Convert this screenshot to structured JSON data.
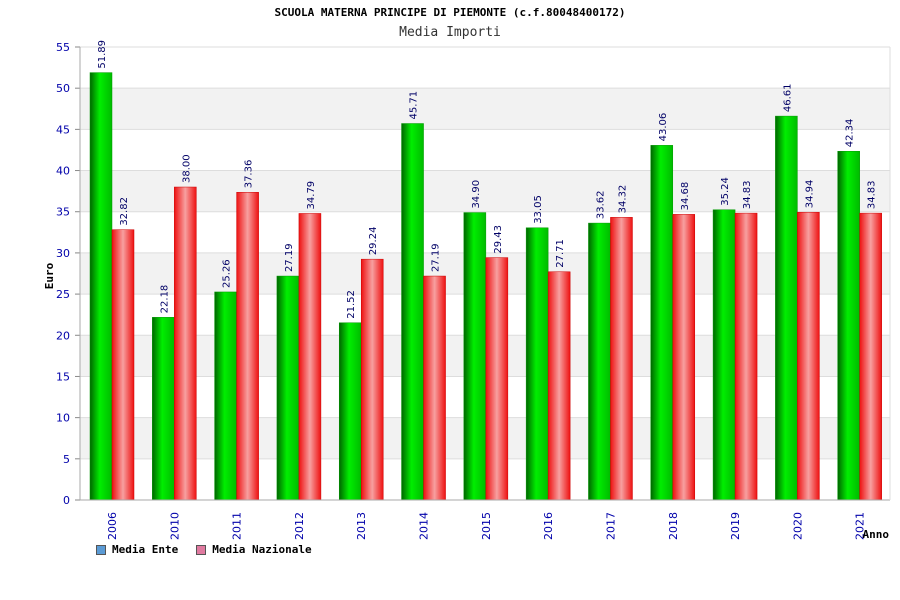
{
  "chart_data": {
    "type": "bar",
    "title": "SCUOLA MATERNA PRINCIPE DI PIEMONTE (c.f.80048400172)",
    "subtitle": "Media Importi",
    "xlabel": "Anno",
    "ylabel": "Euro",
    "ylim": [
      0,
      55
    ],
    "yticks": [
      0,
      5,
      10,
      15,
      20,
      25,
      30,
      35,
      40,
      45,
      50,
      55
    ],
    "categories": [
      "2006",
      "2010",
      "2011",
      "2012",
      "2013",
      "2014",
      "2015",
      "2016",
      "2017",
      "2018",
      "2019",
      "2020",
      "2021"
    ],
    "series": [
      {
        "name": "Media Ente",
        "values": [
          51.89,
          22.18,
          25.26,
          27.19,
          21.52,
          45.71,
          34.9,
          33.05,
          33.62,
          43.06,
          35.24,
          46.61,
          42.34
        ],
        "labels": [
          "51.89",
          "22.18",
          "25.26",
          "27.19",
          "21.52",
          "45.71",
          "34.90",
          "33.05",
          "33.62",
          "43.06",
          "35.24",
          "46.61",
          "42.34"
        ]
      },
      {
        "name": "Media Nazionale",
        "values": [
          32.82,
          38.0,
          37.36,
          34.79,
          29.24,
          27.19,
          29.43,
          27.71,
          34.32,
          34.68,
          34.83,
          34.94,
          34.83
        ],
        "labels": [
          "32.82",
          "38.00",
          "37.36",
          "34.79",
          "29.24",
          "27.19",
          "29.43",
          "27.71",
          "34.32",
          "34.68",
          "34.83",
          "34.94",
          "34.83"
        ]
      }
    ],
    "legend": [
      {
        "label": "Media Ente",
        "color": "#5b9bd5"
      },
      {
        "label": "Media Nazionale",
        "color": "#e07aa0"
      }
    ],
    "colors": {
      "series1": "#00cc00",
      "series2": "#ee1111",
      "band": "#f2f2f2",
      "grid": "#dddddd"
    }
  }
}
